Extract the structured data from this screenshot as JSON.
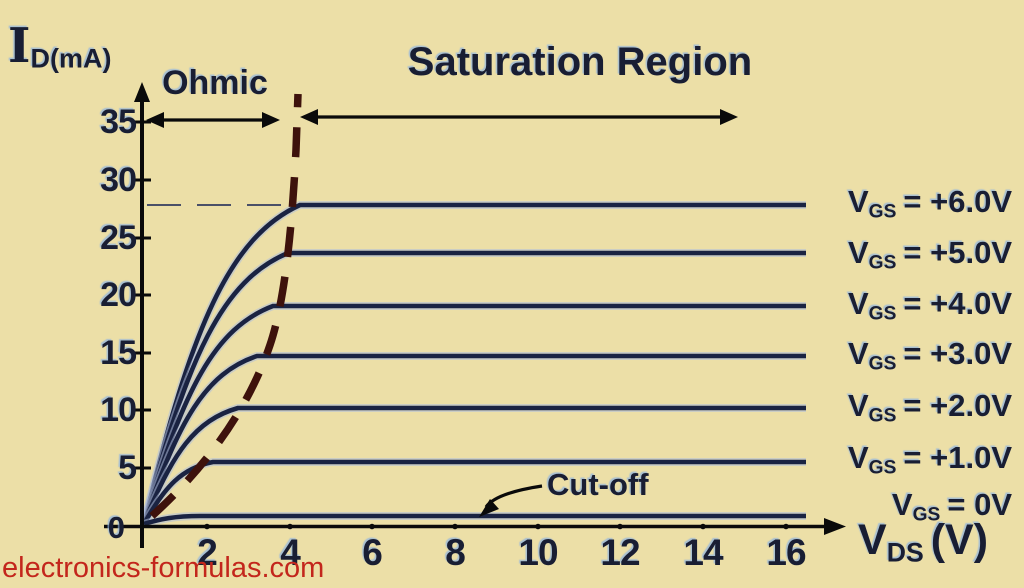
{
  "colors": {
    "background": "#ecdfa7",
    "curve": "#1a2342",
    "curve_halo": "#afbedc",
    "dashed_boundary": "#3e120c",
    "axis": "#0a0a0a",
    "text": "#191e33",
    "watermark": "#c3261c"
  },
  "y_axis": {
    "unit_prefix": "I",
    "unit_sub": "D(mA)",
    "ticks": [
      "35",
      "30",
      "25",
      "20",
      "15",
      "10",
      "5",
      "0"
    ]
  },
  "x_axis": {
    "unit_prefix": "V",
    "unit_sub": "DS",
    "unit_rest": "(V)",
    "ticks": [
      "2",
      "4",
      "6",
      "8",
      "10",
      "12",
      "14",
      "16"
    ]
  },
  "annotations": {
    "ohmic": "Ohmic",
    "saturation": "Saturation Region",
    "cutoff": "Cut-off"
  },
  "curve_labels": [
    {
      "prefix": "V",
      "sub": "GS",
      "rest": "= +6.0V"
    },
    {
      "prefix": "V",
      "sub": "GS",
      "rest": "= +5.0V"
    },
    {
      "prefix": "V",
      "sub": "GS",
      "rest": "= +4.0V"
    },
    {
      "prefix": "V",
      "sub": "GS",
      "rest": "= +3.0V"
    },
    {
      "prefix": "V",
      "sub": "GS",
      "rest": "= +2.0V"
    },
    {
      "prefix": "V",
      "sub": "GS",
      "rest": "= +1.0V"
    },
    {
      "prefix": "V",
      "sub": "GS",
      "rest": "= 0V"
    }
  ],
  "watermark": "electronics-formulas.com",
  "chart_data": {
    "type": "line",
    "title": "MOSFET output characteristic curves",
    "xlabel": "VDS (V)",
    "ylabel": "ID (mA)",
    "xlim": [
      0,
      17
    ],
    "ylim": [
      0,
      37
    ],
    "x_ticks": [
      2,
      4,
      6,
      8,
      10,
      12,
      14,
      16
    ],
    "y_ticks": [
      0,
      5,
      10,
      15,
      20,
      25,
      30,
      35
    ],
    "grid": false,
    "legend_position": "right-of-curves",
    "series": [
      {
        "name": "VGS = +6.0V",
        "vgs_V": 6.0,
        "id_sat_mA": 28.0
      },
      {
        "name": "VGS = +5.0V",
        "vgs_V": 5.0,
        "id_sat_mA": 23.8
      },
      {
        "name": "VGS = +4.0V",
        "vgs_V": 4.0,
        "id_sat_mA": 19.2
      },
      {
        "name": "VGS = +3.0V",
        "vgs_V": 3.0,
        "id_sat_mA": 14.8
      },
      {
        "name": "VGS = +2.0V",
        "vgs_V": 2.0,
        "id_sat_mA": 10.2
      },
      {
        "name": "VGS = +1.0V",
        "vgs_V": 1.0,
        "id_sat_mA": 5.5
      },
      {
        "name": "VGS = 0V",
        "vgs_V": 0.0,
        "id_sat_mA": 0.8
      }
    ],
    "annotations": [
      "Ohmic",
      "Saturation Region",
      "Cut-off"
    ],
    "dashed_reference_mA": 28,
    "region_boundary": "dashed curve separating Ohmic region from Saturation region near VDS ≈ 4 V"
  }
}
